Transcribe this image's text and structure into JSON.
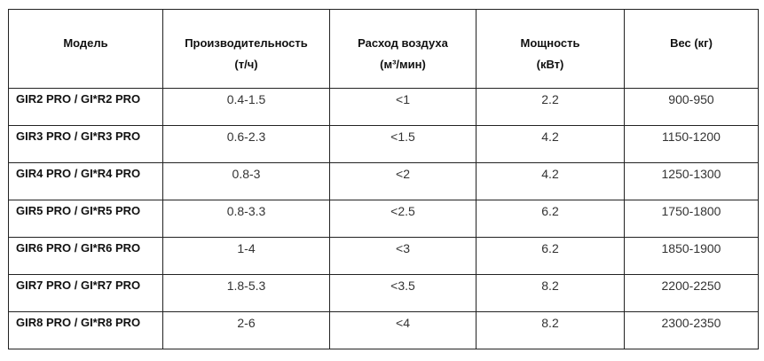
{
  "table": {
    "header": [
      [
        "Модель"
      ],
      [
        "Производительность",
        "(т/ч)"
      ],
      [
        "Расход воздуха",
        "(м³/мин)"
      ],
      [
        "Мощность",
        "(кВт)"
      ],
      [
        "Вес (кг)"
      ]
    ],
    "rows": [
      [
        "GIR2 PRO / GI*R2 PRO",
        "0.4-1.5",
        "<1",
        "2.2",
        "900-950"
      ],
      [
        "GIR3 PRO / GI*R3 PRO",
        "0.6-2.3",
        "<1.5",
        "4.2",
        "1150-1200"
      ],
      [
        "GIR4 PRO / GI*R4 PRO",
        "0.8-3",
        "<2",
        "4.2",
        "1250-1300"
      ],
      [
        "GIR5 PRO / GI*R5 PRO",
        "0.8-3.3",
        "<2.5",
        "6.2",
        "1750-1800"
      ],
      [
        "GIR6 PRO / GI*R6 PRO",
        "1-4",
        "<3",
        "6.2",
        "1850-1900"
      ],
      [
        "GIR7 PRO / GI*R7 PRO",
        "1.8-5.3",
        "<3.5",
        "8.2",
        "2200-2250"
      ],
      [
        "GIR8 PRO / GI*R8 PRO",
        "2-6",
        "<4",
        "8.2",
        "2300-2350"
      ]
    ]
  }
}
